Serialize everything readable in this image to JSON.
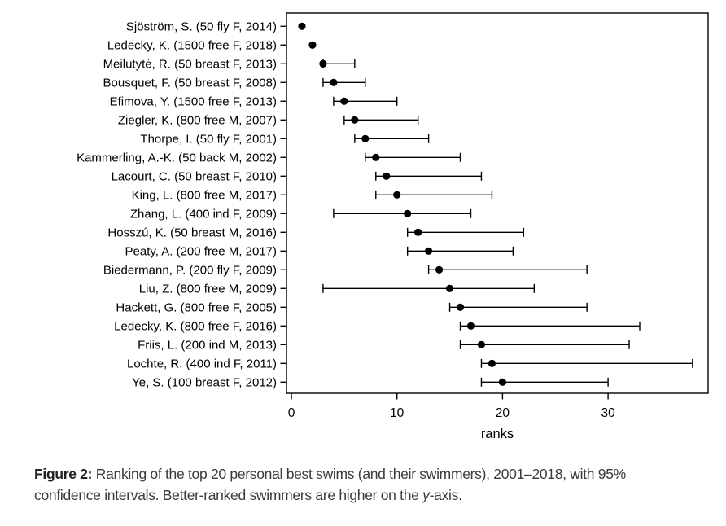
{
  "caption": {
    "label": "Figure 2:",
    "text_before_italic": " Ranking of the top 20 personal best swims (and their swimmers), 2001–2018, with 95% confidence intervals. Better-ranked swimmers are higher on the ",
    "italic_text": "y",
    "text_after_italic": "-axis."
  },
  "chart_data": {
    "type": "scatter",
    "subtype": "horizontal dot plot with 95% confidence interval error bars (forest plot)",
    "title": "",
    "xlabel": "ranks",
    "ylabel": "",
    "xlim": [
      -0.5,
      39.5
    ],
    "x_ticks": [
      0,
      10,
      20,
      30
    ],
    "grid": false,
    "legend": false,
    "point_color": "#000000",
    "line_color": "#000000",
    "rows": [
      {
        "label": "Sjöström, S. (50 fly F, 2014)",
        "rank": 1,
        "ci_low": 1,
        "ci_high": 1
      },
      {
        "label": "Ledecky, K. (1500 free F, 2018)",
        "rank": 2,
        "ci_low": 2,
        "ci_high": 2
      },
      {
        "label": "Meilutytė, R. (50 breast F, 2013)",
        "rank": 3,
        "ci_low": 3,
        "ci_high": 6
      },
      {
        "label": "Bousquet, F. (50 breast F, 2008)",
        "rank": 4,
        "ci_low": 3,
        "ci_high": 7
      },
      {
        "label": "Efimova, Y. (1500 free F, 2013)",
        "rank": 5,
        "ci_low": 4,
        "ci_high": 10
      },
      {
        "label": "Ziegler, K. (800 free M, 2007)",
        "rank": 6,
        "ci_low": 5,
        "ci_high": 12
      },
      {
        "label": "Thorpe, I. (50 fly F, 2001)",
        "rank": 7,
        "ci_low": 6,
        "ci_high": 13
      },
      {
        "label": "Kammerling, A.-K. (50 back M, 2002)",
        "rank": 8,
        "ci_low": 7,
        "ci_high": 16
      },
      {
        "label": "Lacourt, C. (50 breast F, 2010)",
        "rank": 9,
        "ci_low": 8,
        "ci_high": 18
      },
      {
        "label": "King, L. (800 free M, 2017)",
        "rank": 10,
        "ci_low": 8,
        "ci_high": 19
      },
      {
        "label": "Zhang, L. (400 ind F, 2009)",
        "rank": 11,
        "ci_low": 4,
        "ci_high": 17
      },
      {
        "label": "Hosszú, K. (50 breast M, 2016)",
        "rank": 12,
        "ci_low": 11,
        "ci_high": 22
      },
      {
        "label": "Peaty, A. (200 free M, 2017)",
        "rank": 13,
        "ci_low": 11,
        "ci_high": 21
      },
      {
        "label": "Biedermann, P. (200 fly F, 2009)",
        "rank": 14,
        "ci_low": 13,
        "ci_high": 28
      },
      {
        "label": "Liu, Z. (800 free M, 2009)",
        "rank": 15,
        "ci_low": 3,
        "ci_high": 23
      },
      {
        "label": "Hackett, G. (800 free F, 2005)",
        "rank": 16,
        "ci_low": 15,
        "ci_high": 28
      },
      {
        "label": "Ledecky, K. (800 free F, 2016)",
        "rank": 17,
        "ci_low": 16,
        "ci_high": 33
      },
      {
        "label": "Friis, L. (200 ind M, 2013)",
        "rank": 18,
        "ci_low": 16,
        "ci_high": 32
      },
      {
        "label": "Lochte, R. (400 ind F, 2011)",
        "rank": 19,
        "ci_low": 18,
        "ci_high": 38
      },
      {
        "label": "Ye, S. (100 breast F, 2012)",
        "rank": 20,
        "ci_low": 18,
        "ci_high": 30
      }
    ]
  }
}
